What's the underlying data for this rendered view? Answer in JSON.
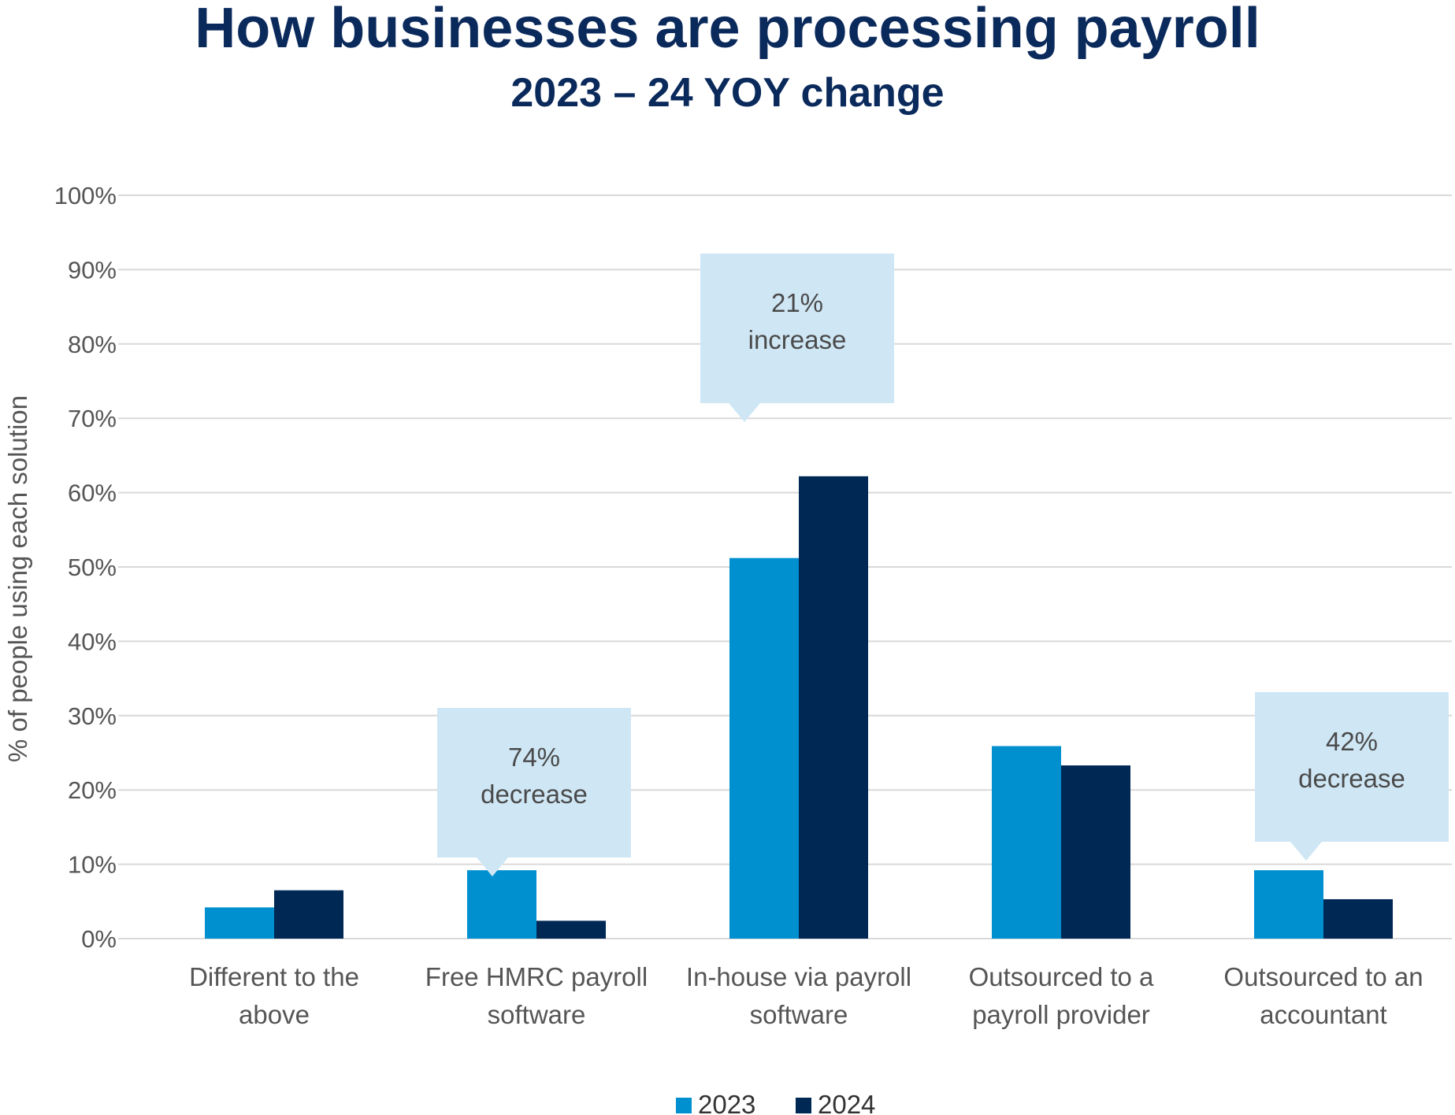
{
  "chart_data": {
    "type": "bar",
    "title": "How businesses are processing payroll",
    "subtitle": "2023 – 24 YOY change",
    "ylabel": "% of people using each solution",
    "xlabel": "",
    "ylim": [
      0,
      100
    ],
    "yticks": [
      "0%",
      "10%",
      "20%",
      "30%",
      "40%",
      "50%",
      "60%",
      "70%",
      "80%",
      "90%",
      "100%"
    ],
    "grid": true,
    "legend_position": "bottom",
    "categories": [
      [
        "Different to the",
        "above"
      ],
      [
        "Free HMRC payroll",
        "software"
      ],
      [
        "In-house via payroll",
        "software"
      ],
      [
        "Outsourced to a",
        "payroll provider"
      ],
      [
        "Outsourced to an",
        "accountant"
      ]
    ],
    "series": [
      {
        "name": "2023",
        "color": "#0090d0",
        "values": [
          4.2,
          9.2,
          51.2,
          25.9,
          9.2
        ]
      },
      {
        "name": "2024",
        "color": "#002855",
        "values": [
          6.5,
          2.4,
          62.2,
          23.3,
          5.3
        ]
      }
    ],
    "annotations": [
      {
        "category_index": 1,
        "lines": [
          "74%",
          "decrease"
        ]
      },
      {
        "category_index": 2,
        "lines": [
          "21%",
          "increase"
        ]
      },
      {
        "category_index": 4,
        "lines": [
          "42%",
          "decrease"
        ]
      }
    ],
    "annotation_color": "#cfe7f5"
  }
}
